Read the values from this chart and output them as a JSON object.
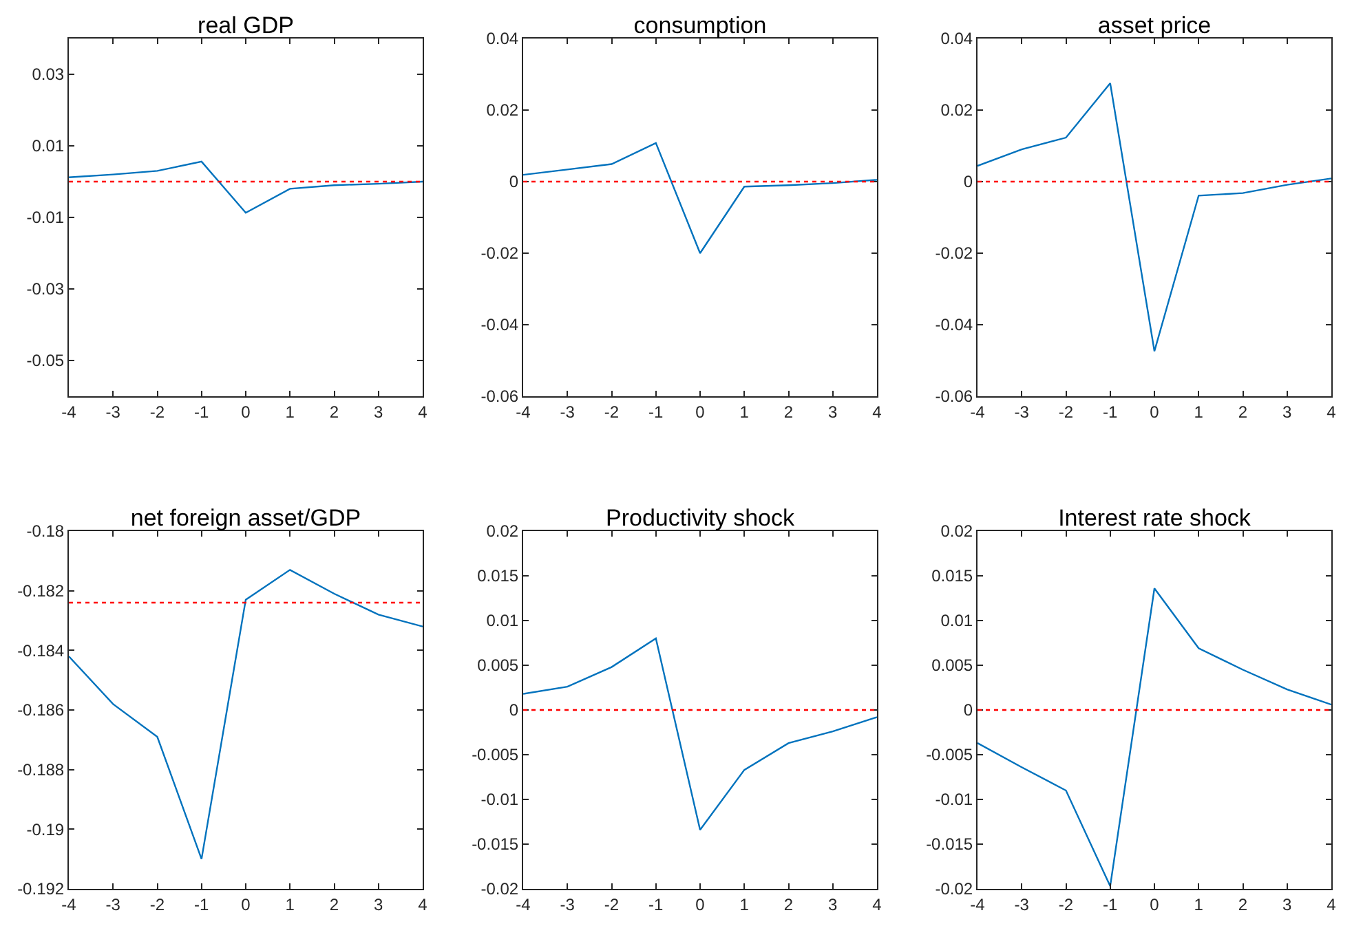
{
  "chart_data": [
    {
      "type": "line",
      "title": "real GDP",
      "x": [
        -4,
        -3,
        -2,
        -1,
        0,
        1,
        2,
        3,
        4
      ],
      "xlim": [
        -4,
        4
      ],
      "xticks": [
        -4,
        -3,
        -2,
        -1,
        0,
        1,
        2,
        3,
        4
      ],
      "ylim": [
        -0.06,
        0.04
      ],
      "yticks": [
        -0.05,
        -0.03,
        -0.01,
        0.01,
        0.03
      ],
      "series": [
        {
          "color": "#0072bd",
          "values": [
            0.0012,
            0.002,
            0.003,
            0.0056,
            -0.0087,
            -0.002,
            -0.001,
            -0.0006,
            0
          ]
        }
      ],
      "ref_lines": [
        {
          "axis": "y",
          "value": 0,
          "color": "#ff0000",
          "line_style": "dotted"
        }
      ]
    },
    {
      "type": "line",
      "title": "consumption",
      "x": [
        -4,
        -3,
        -2,
        -1,
        0,
        1,
        2,
        3,
        4
      ],
      "xlim": [
        -4,
        4
      ],
      "xticks": [
        -4,
        -3,
        -2,
        -1,
        0,
        1,
        2,
        3,
        4
      ],
      "ylim": [
        -0.06,
        0.04
      ],
      "yticks": [
        -0.06,
        -0.04,
        -0.02,
        0,
        0.02,
        0.04
      ],
      "series": [
        {
          "color": "#0072bd",
          "values": [
            0.0019,
            0.0034,
            0.0049,
            0.0108,
            -0.02,
            -0.0014,
            -0.001,
            -0.0004,
            0.0005
          ]
        }
      ],
      "ref_lines": [
        {
          "axis": "y",
          "value": 0,
          "color": "#ff0000",
          "line_style": "dotted"
        }
      ]
    },
    {
      "type": "line",
      "title": "asset price",
      "x": [
        -4,
        -3,
        -2,
        -1,
        0,
        1,
        2,
        3,
        4
      ],
      "xlim": [
        -4,
        4
      ],
      "xticks": [
        -4,
        -3,
        -2,
        -1,
        0,
        1,
        2,
        3,
        4
      ],
      "ylim": [
        -0.06,
        0.04
      ],
      "yticks": [
        -0.06,
        -0.04,
        -0.02,
        0,
        0.02,
        0.04
      ],
      "series": [
        {
          "color": "#0072bd",
          "values": [
            0.0044,
            0.009,
            0.0123,
            0.0275,
            -0.0474,
            -0.0039,
            -0.0032,
            -0.0009,
            0.0009
          ]
        }
      ],
      "ref_lines": [
        {
          "axis": "y",
          "value": 0,
          "color": "#ff0000",
          "line_style": "dotted"
        }
      ]
    },
    {
      "type": "line",
      "title": "net foreign asset/GDP",
      "x": [
        -4,
        -3,
        -2,
        -1,
        0,
        1,
        2,
        3,
        4
      ],
      "xlim": [
        -4,
        4
      ],
      "xticks": [
        -4,
        -3,
        -2,
        -1,
        0,
        1,
        2,
        3,
        4
      ],
      "ylim": [
        -0.192,
        -0.18
      ],
      "yticks": [
        -0.192,
        -0.19,
        -0.188,
        -0.186,
        -0.184,
        -0.182,
        -0.18
      ],
      "series": [
        {
          "color": "#0072bd",
          "values": [
            -0.1842,
            -0.1858,
            -0.1869,
            -0.191,
            -0.1823,
            -0.1813,
            -0.1821,
            -0.1828,
            -0.1832
          ]
        }
      ],
      "ref_lines": [
        {
          "axis": "y",
          "value": -0.1824,
          "color": "#ff0000",
          "line_style": "dotted"
        }
      ]
    },
    {
      "type": "line",
      "title": "Productivity shock",
      "x": [
        -4,
        -3,
        -2,
        -1,
        0,
        1,
        2,
        3,
        4
      ],
      "xlim": [
        -4,
        4
      ],
      "xticks": [
        -4,
        -3,
        -2,
        -1,
        0,
        1,
        2,
        3,
        4
      ],
      "ylim": [
        -0.02,
        0.02
      ],
      "yticks": [
        -0.02,
        -0.015,
        -0.01,
        -0.005,
        0,
        0.005,
        0.01,
        0.015,
        0.02
      ],
      "series": [
        {
          "color": "#0072bd",
          "values": [
            0.0018,
            0.0026,
            0.0048,
            0.008,
            -0.0134,
            -0.0067,
            -0.0037,
            -0.0024,
            -0.0008
          ]
        }
      ],
      "ref_lines": [
        {
          "axis": "y",
          "value": 0,
          "color": "#ff0000",
          "line_style": "dotted"
        }
      ]
    },
    {
      "type": "line",
      "title": "Interest rate shock",
      "x": [
        -4,
        -3,
        -2,
        -1,
        0,
        1,
        2,
        3,
        4
      ],
      "xlim": [
        -4,
        4
      ],
      "xticks": [
        -4,
        -3,
        -2,
        -1,
        0,
        1,
        2,
        3,
        4
      ],
      "ylim": [
        -0.02,
        0.02
      ],
      "yticks": [
        -0.02,
        -0.015,
        -0.01,
        -0.005,
        0,
        0.005,
        0.01,
        0.015,
        0.02
      ],
      "series": [
        {
          "color": "#0072bd",
          "values": [
            -0.0037,
            -0.0064,
            -0.009,
            -0.0197,
            0.0136,
            0.0069,
            0.0045,
            0.0023,
            0.0006
          ]
        }
      ],
      "ref_lines": [
        {
          "axis": "y",
          "value": 0,
          "color": "#ff0000",
          "line_style": "dotted"
        }
      ]
    }
  ]
}
